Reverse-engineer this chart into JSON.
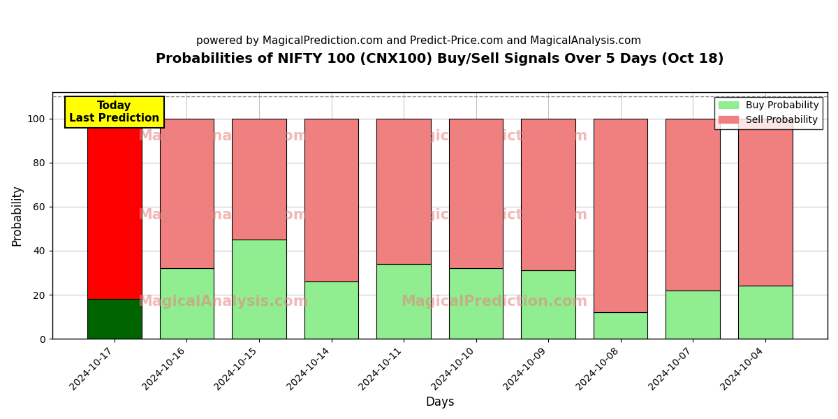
{
  "title": "Probabilities of NIFTY 100 (CNX100) Buy/Sell Signals Over 5 Days (Oct 18)",
  "subtitle": "powered by MagicalPrediction.com and Predict-Price.com and MagicalAnalysis.com",
  "xlabel": "Days",
  "ylabel": "Probability",
  "categories": [
    "2024-10-17",
    "2024-10-16",
    "2024-10-15",
    "2024-10-14",
    "2024-10-11",
    "2024-10-10",
    "2024-10-09",
    "2024-10-08",
    "2024-10-07",
    "2024-10-04"
  ],
  "buy_values": [
    18,
    32,
    45,
    26,
    34,
    32,
    31,
    12,
    22,
    24
  ],
  "sell_values": [
    82,
    68,
    55,
    74,
    66,
    68,
    69,
    88,
    78,
    76
  ],
  "buy_color_today": "#006400",
  "sell_color_today": "#ff0000",
  "buy_color_other": "#90EE90",
  "sell_color_other": "#F08080",
  "bar_edge_color": "black",
  "ylim_max": 112,
  "yticks": [
    0,
    20,
    40,
    60,
    80,
    100
  ],
  "dashed_line_y": 110,
  "today_label_text": "Today\nLast Prediction",
  "today_label_bg": "#ffff00",
  "today_label_fontsize": 11,
  "watermark_texts": [
    "MagicalAnalysis.com",
    "MagicalPrediction.com"
  ],
  "watermark_color": "#E88080",
  "watermark_alpha": 0.55,
  "legend_buy_label": "Buy Probability",
  "legend_sell_label": "Sell Probability",
  "title_fontsize": 14,
  "subtitle_fontsize": 11,
  "axis_label_fontsize": 12,
  "tick_fontsize": 10,
  "background_color": "white",
  "grid_color": "gray",
  "grid_alpha": 0.5
}
